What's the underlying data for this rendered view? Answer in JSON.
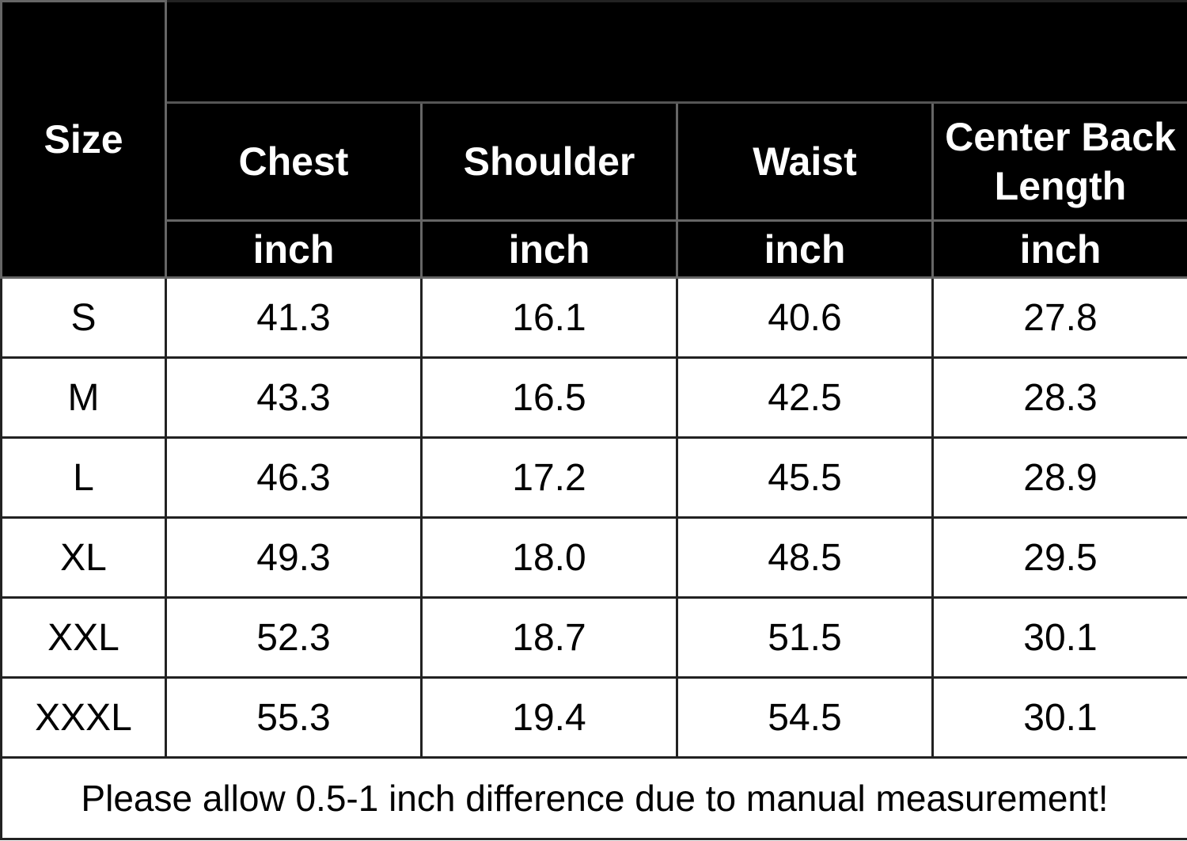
{
  "table": {
    "size_header": "Size",
    "columns": [
      {
        "name": "Chest",
        "unit": "inch"
      },
      {
        "name": "Shoulder",
        "unit": "inch"
      },
      {
        "name": "Waist",
        "unit": "inch"
      },
      {
        "name": "Center Back Length",
        "unit": "inch"
      }
    ],
    "rows": [
      {
        "size": "S",
        "values": [
          "41.3",
          "16.1",
          "40.6",
          "27.8"
        ]
      },
      {
        "size": "M",
        "values": [
          "43.3",
          "16.5",
          "42.5",
          "28.3"
        ]
      },
      {
        "size": "L",
        "values": [
          "46.3",
          "17.2",
          "45.5",
          "28.9"
        ]
      },
      {
        "size": "XL",
        "values": [
          "49.3",
          "18.0",
          "48.5",
          "29.5"
        ]
      },
      {
        "size": "XXL",
        "values": [
          "52.3",
          "18.7",
          "51.5",
          "30.1"
        ]
      },
      {
        "size": "XXXL",
        "values": [
          "55.3",
          "19.4",
          "54.5",
          "30.1"
        ]
      }
    ],
    "note": "Please allow 0.5-1 inch difference due to manual measurement!"
  }
}
